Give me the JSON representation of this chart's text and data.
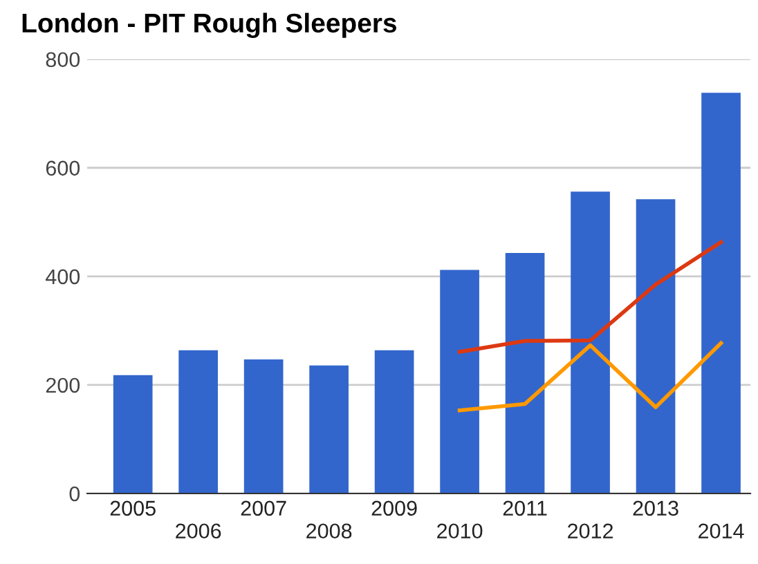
{
  "chart_data": {
    "type": "bar",
    "title": "London - PIT Rough Sleepers",
    "categories": [
      "2005",
      "2006",
      "2007",
      "2008",
      "2009",
      "2010",
      "2011",
      "2012",
      "2013",
      "2014"
    ],
    "series": [
      {
        "color": "#3366cc",
        "values": [
          218,
          264,
          247,
          236,
          264,
          412,
          443,
          556,
          542,
          738
        ]
      },
      {
        "type": "line",
        "color": "#dc3912",
        "values": [
          null,
          null,
          null,
          null,
          null,
          261,
          281,
          282,
          385,
          463
        ]
      },
      {
        "type": "line",
        "color": "#ff9900",
        "values": [
          null,
          null,
          null,
          null,
          null,
          153,
          165,
          273,
          159,
          277
        ]
      }
    ],
    "ylim": [
      0,
      800
    ],
    "yticks": [
      0,
      200,
      400,
      600,
      800
    ],
    "grid": "y",
    "legend": false
  }
}
